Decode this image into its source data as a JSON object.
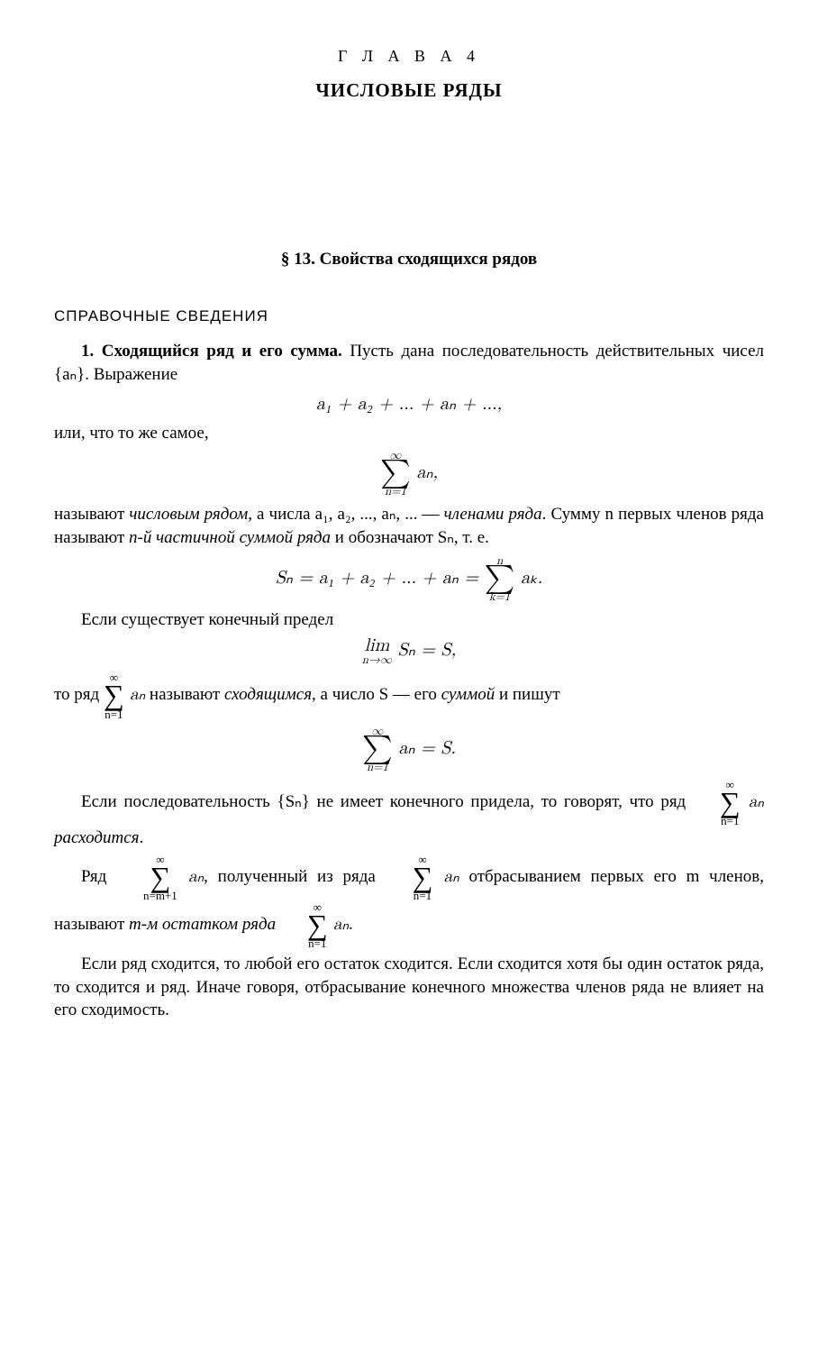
{
  "chapter": {
    "label": "Г Л А В А  4",
    "title": "ЧИСЛОВЫЕ РЯДЫ"
  },
  "section": {
    "title": "§ 13. Свойства сходящихся рядов"
  },
  "subsection": {
    "title": "СПРАВОЧНЫЕ СВЕДЕНИЯ"
  },
  "para1": {
    "bold": "1. Сходящийся ряд и его сумма.",
    "text": " Пусть дана последовательность действительных чисел {aₙ}. Выражение"
  },
  "eq1": "a₁ + a₂ + ... + aₙ + ...,",
  "para2": "или, что то же самое,",
  "eq2": {
    "top": "∞",
    "bottom": "n=1",
    "body": " aₙ,"
  },
  "para3": {
    "pre": "называют ",
    "it1": "числовым рядом",
    "mid1": ", а числа a₁, a₂, ..., aₙ, ... — ",
    "it2": "членами ряда",
    "mid2": ". Сумму n первых членов ряда называют ",
    "it3": "n-й частичной суммой ряда",
    "end": " и обозначают Sₙ, т. е."
  },
  "eq3": {
    "left": "Sₙ = a₁ + a₂ + ... + aₙ = ",
    "top": "n",
    "bottom": "k=1",
    "right": " aₖ."
  },
  "para4": "Если существует конечный предел",
  "eq4": {
    "lim": "lim",
    "sub": "n→∞",
    "body": " Sₙ = S,"
  },
  "para5": {
    "pre": "то ряд ",
    "top": "∞",
    "bottom": "n=1",
    "body": " aₙ",
    "mid1": " называют ",
    "it1": "сходящимся",
    "mid2": ", а число S — его ",
    "it2": "суммой",
    "end": " и пишут"
  },
  "eq5": {
    "top": "∞",
    "bottom": "n=1",
    "body": " aₙ = S."
  },
  "para6": {
    "pre": "Если последовательность {Sₙ} не имеет конечного придела, то говорят, что ряд ",
    "top": "∞",
    "bottom": "n=1",
    "body": " aₙ ",
    "it": "расходится",
    "end": "."
  },
  "para7": {
    "pre": "Ряд ",
    "top1": "∞",
    "bottom1": "n=m+1",
    "body1": " aₙ",
    "mid": ", полученный из ряда ",
    "top2": "∞",
    "bottom2": "n=1",
    "body2": " aₙ",
    "mid2": " отбрасыванием первых его m членов, называют ",
    "it": "m-м остатком ряда",
    "sp": " ",
    "top3": "∞",
    "bottom3": "n=1",
    "body3": " aₙ",
    "end": "."
  },
  "para8": "Если ряд сходится, то любой его остаток сходится. Если сходится хотя бы один остаток ряда, то сходится и ряд. Иначе говоря, отбрасывание конечного множества членов ряда не влияет на его сходимость."
}
